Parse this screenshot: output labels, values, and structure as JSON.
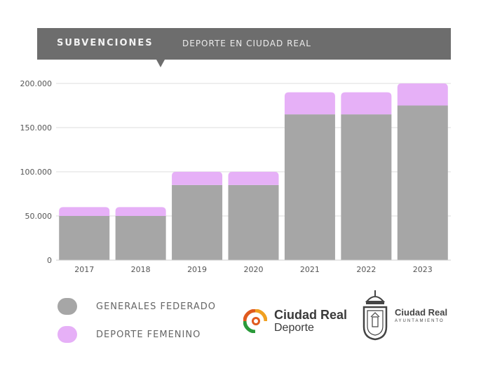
{
  "banner": {
    "title": "SUBVENCIONES",
    "subtitle": "DEPORTE EN CIUDAD REAL"
  },
  "chart_data": {
    "type": "bar",
    "stacked": true,
    "categories": [
      "2017",
      "2018",
      "2019",
      "2020",
      "2021",
      "2022",
      "2023"
    ],
    "series": [
      {
        "name": "GENERALES FEDERADO",
        "color": "#a6a6a6",
        "values": [
          50000,
          50000,
          85000,
          85000,
          165000,
          165000,
          175000
        ]
      },
      {
        "name": "DEPORTE FEMENINO",
        "color": "#e6b0f7",
        "values": [
          10000,
          10000,
          15000,
          15000,
          25000,
          25000,
          25000
        ]
      }
    ],
    "ylim": [
      0,
      200000
    ],
    "yticks": [
      0,
      50000,
      100000,
      150000,
      200000
    ],
    "ytick_labels": [
      "0",
      "50.000",
      "100.000",
      "150.000",
      "200.000"
    ],
    "grid": true
  },
  "legend": [
    {
      "label": "GENERALES FEDERADO",
      "color": "#a6a6a6"
    },
    {
      "label": "DEPORTE FEMENINO",
      "color": "#e6b0f7"
    }
  ],
  "logos": {
    "deporte": {
      "name": "Ciudad Real",
      "sub": "Deporte"
    },
    "ayuntamiento": {
      "name": "Ciudad Real",
      "sub": "AYUNTAMIENTO"
    }
  }
}
